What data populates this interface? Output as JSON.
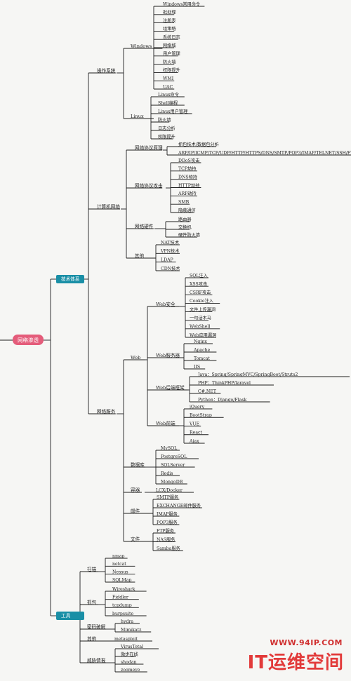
{
  "root": {
    "label": "网络渗透",
    "color": "#e45c7a"
  },
  "branches": [
    {
      "label": "技术体系",
      "color": "#1a8fa6"
    },
    {
      "label": "工具",
      "color": "#1a8fa6"
    }
  ],
  "groups": {
    "os": "操作系统",
    "windows": "Windows",
    "linux": "Linux",
    "net": "计算机网络",
    "proto": "网络协议原理",
    "attack": "网络协议攻击",
    "hw": "网络硬件",
    "other": "其他",
    "svc": "网络服务",
    "web": "Web",
    "websec": "Web安全",
    "websrv": "Web服务器",
    "webback": "Web后端框架",
    "webfront": "Web前端",
    "db": "数据库",
    "container": "容器",
    "mail": "邮件",
    "file": "文件",
    "scan": "扫描",
    "cap": "抓包",
    "crack": "密码破解",
    "tother": "其他",
    "threat": "威胁情报"
  },
  "windows_items": [
    "Windows常用命令",
    "批处理",
    "注册表",
    "组策略",
    "系统日志",
    "网络域",
    "用户管理",
    "防火墙",
    "权限提升",
    "WMI",
    "UAC"
  ],
  "linux_items": [
    "Linux命令",
    "Shell编程",
    "Linux用户管理",
    "防火墙",
    "日志分析",
    "权限提升"
  ],
  "proto_items": [
    "抓包技术/数据包分析",
    "ARP/IP/ICMP/TCP/UDP/HTTP/HTTPS/DNS/SMTP/POP3/IMAP/TELNET/SSH/FTP"
  ],
  "attack_items": [
    "DDoS攻击",
    "TCP劫持",
    "DNS劫持",
    "HTTP劫持",
    "ARP劫持",
    "SMB",
    "隐蔽通信"
  ],
  "hw_items": [
    "路由器",
    "交换机",
    "硬件防火墙"
  ],
  "other_items": [
    "NAT技术",
    "VPN技术",
    "LDAP",
    "CDN技术"
  ],
  "websec_items": [
    "SQL注入",
    "XSS攻击",
    "CSRF攻击",
    "Cookie注入",
    "文件上传漏洞",
    "一句话木马",
    "WebShell",
    "Web应用漏洞"
  ],
  "websrv_items": [
    "Nginx",
    "Apache",
    "Tomcat",
    "IIS"
  ],
  "webback_items": [
    "Java：Spring/SpringMVC/SpringBoot/Struts2",
    "PHP：ThinkPHP/laravel",
    "C#.NET",
    "Python：Django/Flask"
  ],
  "webfront_items": [
    "jQuery",
    "BootStrap",
    "VUE",
    "React",
    "Ajax"
  ],
  "db_items": [
    "MySQL",
    "PostgreSQL",
    "SQLServer",
    "Redis",
    "MongoDB"
  ],
  "container_items": [
    "LCX/Docker"
  ],
  "mail_items": [
    "SMTP服务",
    "EXCHANGE邮件服务",
    "IMAP服务",
    "POP3服务"
  ],
  "file_items": [
    "FTP服务",
    "NAS服务",
    "Samba服务"
  ],
  "scan_items": [
    "nmap",
    "netcat",
    "Nessus",
    "SQLMap"
  ],
  "cap_items": [
    "Wireshark",
    "Fiddler",
    "tcpdump",
    "burpsuite"
  ],
  "crack_items": [
    "hydra",
    "Mimikatz"
  ],
  "tother_items": [
    "metasploit"
  ],
  "threat_items": [
    "VirusTotal",
    "微步在线",
    "shodan",
    "zoomeye"
  ],
  "watermark": {
    "url": "WWW.94IP.COM",
    "name": "IT运维空间"
  }
}
